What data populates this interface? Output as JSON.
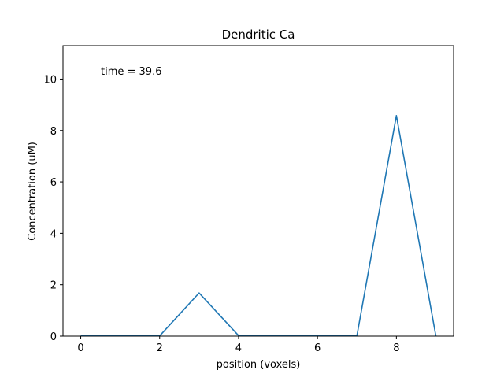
{
  "figure": {
    "background": "#ffffff"
  },
  "chart_data": {
    "type": "line",
    "title": "Dendritic Ca",
    "xlabel": "position (voxels)",
    "ylabel": "Concentration (uM)",
    "annotation": "time = 39.6",
    "annotation_placement": "top-left",
    "xlim": [
      -0.45,
      9.45
    ],
    "ylim": [
      0,
      11.3
    ],
    "xticks": [
      0,
      2,
      4,
      6,
      8
    ],
    "xtick_labels": [
      "0",
      "2",
      "4",
      "6",
      "8"
    ],
    "yticks": [
      0,
      2,
      4,
      6,
      8,
      10
    ],
    "ytick_labels": [
      "0",
      "2",
      "4",
      "6",
      "8",
      "10"
    ],
    "grid": false,
    "legend": false,
    "series": [
      {
        "color": "#1f77b4",
        "x": [
          0,
          1,
          2,
          3,
          4,
          5,
          6,
          7,
          8,
          9
        ],
        "y": [
          0.01,
          0.01,
          0.01,
          1.68,
          0.02,
          0.01,
          0.01,
          0.02,
          8.58,
          0.01
        ]
      }
    ]
  }
}
